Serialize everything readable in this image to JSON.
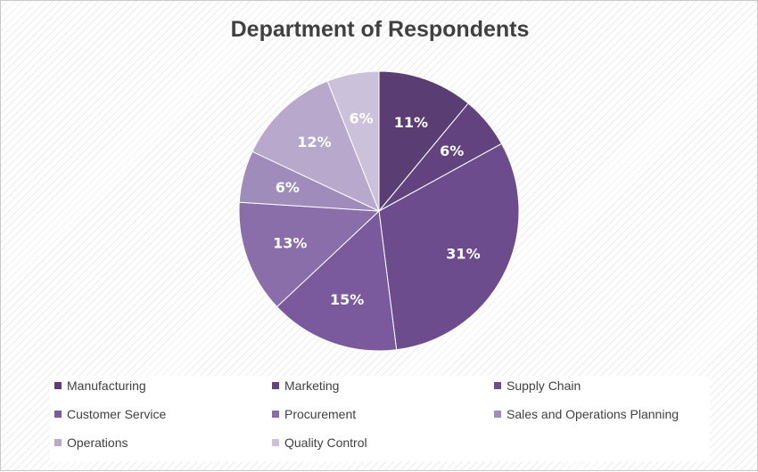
{
  "chart_data": {
    "type": "pie",
    "title": "Department of Respondents",
    "categories": [
      "Manufacturing",
      "Marketing",
      "Supply Chain",
      "Customer Service",
      "Procurement",
      "Sales and Operations Planning",
      "Operations",
      "Quality Control"
    ],
    "values": [
      11,
      6,
      31,
      15,
      13,
      6,
      12,
      6
    ],
    "labels": [
      "11%",
      "6%",
      "31%",
      "15%",
      "13%",
      "6%",
      "12%",
      "6%"
    ],
    "colors": [
      "#5a3d72",
      "#63437f",
      "#6d4c8e",
      "#7a5a9c",
      "#8a6ea9",
      "#a08cbb",
      "#b7a8cc",
      "#ccc1db"
    ],
    "legend_position": "bottom"
  }
}
